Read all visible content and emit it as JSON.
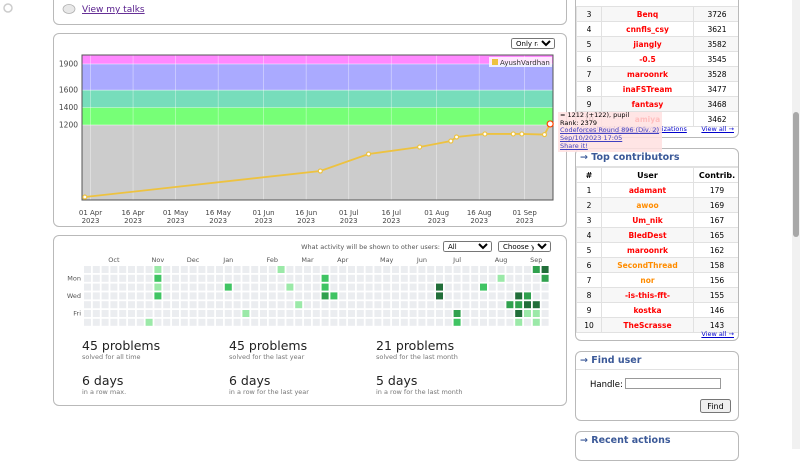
{
  "talks_link": "View my talks",
  "rating_chart": {
    "type": "line",
    "filter": "Only rated",
    "legend": "AyushVardhan",
    "color": "#edc240",
    "x": [
      "2023-03-30",
      "2023-06-21",
      "2023-07-08",
      "2023-07-26",
      "2023-08-06",
      "2023-08-08",
      "2023-08-18",
      "2023-08-28",
      "2023-08-31",
      "2023-09-08",
      "2023-09-10"
    ],
    "values": [
      373,
      672,
      867,
      947,
      1016,
      1062,
      1097,
      1097,
      1097,
      1090,
      1212
    ],
    "xlim": [
      "2023-03-29",
      "2023-09-11"
    ],
    "xticks": [
      {
        "value": "2023-04-01",
        "label": "01 Apr",
        "year": "2023"
      },
      {
        "value": "2023-04-16",
        "label": "16 Apr",
        "year": "2023"
      },
      {
        "value": "2023-05-01",
        "label": "01 May",
        "year": "2023"
      },
      {
        "value": "2023-05-16",
        "label": "16 May",
        "year": "2023"
      },
      {
        "value": "2023-06-01",
        "label": "01 Jun",
        "year": "2023"
      },
      {
        "value": "2023-06-16",
        "label": "16 Jun",
        "year": "2023"
      },
      {
        "value": "2023-07-01",
        "label": "01 Jul",
        "year": "2023"
      },
      {
        "value": "2023-07-16",
        "label": "16 Jul",
        "year": "2023"
      },
      {
        "value": "2023-08-01",
        "label": "01 Aug",
        "year": "2023"
      },
      {
        "value": "2023-08-16",
        "label": "16 Aug",
        "year": "2023"
      },
      {
        "value": "2023-09-01",
        "label": "01 Sep",
        "year": "2023"
      }
    ],
    "ylim": [
      339,
      2003
    ],
    "yticks": [
      1200,
      1400,
      1600,
      1900
    ],
    "bands": [
      {
        "from": 0,
        "to": 1200,
        "color": "#cccccc"
      },
      {
        "from": 1200,
        "to": 1400,
        "color": "#77ff77"
      },
      {
        "from": 1400,
        "to": 1600,
        "color": "#77ddbb"
      },
      {
        "from": 1600,
        "to": 1900,
        "color": "#aaaaff"
      },
      {
        "from": 1900,
        "to": 2100,
        "color": "#ff88ff"
      }
    ],
    "tooltip": {
      "line1": "= 1212 (+122), pupil",
      "rank": "Rank: 2379",
      "contest": "Codeforces Round 896 (Div. 2)",
      "date": "Sep/10/2023 17:05",
      "share": "Share it!"
    }
  },
  "activity": {
    "visibility_label": "What activity will be shown to other users:",
    "visibility": "All",
    "year_select": "Choose year",
    "weeks": 53,
    "months": [
      {
        "label": "Oct",
        "week": 3
      },
      {
        "label": "Nov",
        "week": 8
      },
      {
        "label": "Dec",
        "week": 12
      },
      {
        "label": "Jan",
        "week": 16
      },
      {
        "label": "Feb",
        "week": 21
      },
      {
        "label": "Mar",
        "week": 25
      },
      {
        "label": "Apr",
        "week": 29
      },
      {
        "label": "May",
        "week": 34
      },
      {
        "label": "Jun",
        "week": 38
      },
      {
        "label": "Jul",
        "week": 42
      },
      {
        "label": "Aug",
        "week": 47
      },
      {
        "label": "Sep",
        "week": 51
      }
    ],
    "days": [
      {
        "label": "Mon",
        "row": 1
      },
      {
        "label": "Wed",
        "row": 3
      },
      {
        "label": "Fri",
        "row": 5
      }
    ],
    "level_colors": [
      "#ebedf0",
      "#9be9a8",
      "#40c463",
      "#30a14e",
      "#216e39"
    ],
    "cells": [
      [
        8,
        0,
        1
      ],
      [
        8,
        1,
        2
      ],
      [
        8,
        2,
        1
      ],
      [
        8,
        3,
        2
      ],
      [
        16,
        2,
        2
      ],
      [
        22,
        0,
        1
      ],
      [
        23,
        2,
        1
      ],
      [
        24,
        4,
        1
      ],
      [
        27,
        1,
        2
      ],
      [
        27,
        2,
        2
      ],
      [
        27,
        3,
        3
      ],
      [
        28,
        3,
        2
      ],
      [
        18,
        5,
        1
      ],
      [
        7,
        6,
        1
      ],
      [
        40,
        2,
        4
      ],
      [
        40,
        3,
        4
      ],
      [
        42,
        5,
        3
      ],
      [
        42,
        6,
        2
      ],
      [
        45,
        2,
        2
      ],
      [
        47,
        1,
        1
      ],
      [
        48,
        4,
        3
      ],
      [
        49,
        3,
        4
      ],
      [
        49,
        4,
        3
      ],
      [
        49,
        5,
        4
      ],
      [
        49,
        6,
        1
      ],
      [
        50,
        3,
        3
      ],
      [
        50,
        4,
        4
      ],
      [
        50,
        5,
        1
      ],
      [
        51,
        0,
        3
      ],
      [
        51,
        4,
        4
      ],
      [
        51,
        5,
        1
      ],
      [
        51,
        6,
        1
      ],
      [
        52,
        0,
        4
      ],
      [
        52,
        1,
        3
      ]
    ],
    "stats": [
      {
        "value": "45 problems",
        "caption": "solved for all time"
      },
      {
        "value": "45 problems",
        "caption": "solved for the last year"
      },
      {
        "value": "21 problems",
        "caption": "solved for the last month"
      },
      {
        "value": "6 days",
        "caption": "in a row max."
      },
      {
        "value": "6 days",
        "caption": "in a row for the last year"
      },
      {
        "value": "5 days",
        "caption": "in a row for the last month"
      }
    ]
  },
  "top_rated": {
    "rows": [
      [
        "3",
        "Benq",
        "3726"
      ],
      [
        "4",
        "cnnfls_csy",
        "3621"
      ],
      [
        "5",
        "jiangly",
        "3582"
      ],
      [
        "6",
        "-0.5",
        "3545"
      ],
      [
        "7",
        "maroonrk",
        "3528"
      ],
      [
        "8",
        "inaFSTream",
        "3477"
      ],
      [
        "9",
        "fantasy",
        "3468"
      ],
      [
        "10",
        "amiya",
        "3462"
      ]
    ],
    "name_color": "#ff0000",
    "footer": "Countries | Cities | Organizations",
    "view_all": "View all →"
  },
  "top_contributors": {
    "title": "→ Top contributors",
    "headers": [
      "#",
      "User",
      "Contrib."
    ],
    "rows": [
      [
        "1",
        "adamant",
        "179"
      ],
      [
        "2",
        "awoo",
        "169"
      ],
      [
        "3",
        "Um_nik",
        "167"
      ],
      [
        "4",
        "BledDest",
        "165"
      ],
      [
        "5",
        "maroonrk",
        "162"
      ],
      [
        "6",
        "SecondThread",
        "158"
      ],
      [
        "7",
        "nor",
        "156"
      ],
      [
        "8",
        "-is-this-fft-",
        "155"
      ],
      [
        "9",
        "kostka",
        "146"
      ],
      [
        "10",
        "TheScrasse",
        "143"
      ]
    ],
    "colors": [
      "#ff0000",
      "#ff8c00",
      "#ff0000",
      "#ff0000",
      "#ff0000",
      "#ff8c00",
      "#ff8c00",
      "#ff0000",
      "#ff0000",
      "#ff0000"
    ],
    "view_all": "View all →"
  },
  "find_user": {
    "title": "→ Find user",
    "label": "Handle:",
    "button": "Find"
  },
  "recent_actions": {
    "title": "→ Recent actions"
  }
}
